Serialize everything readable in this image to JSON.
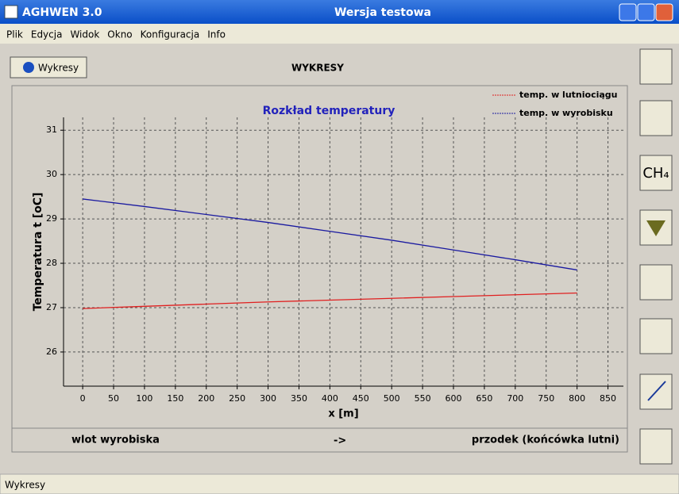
{
  "window": {
    "app_title": "AGHWEN 3.0",
    "center_title": "Wersja testowa"
  },
  "menu": [
    "Plik",
    "Edycja",
    "Widok",
    "Okno",
    "Konfiguracja",
    "Info"
  ],
  "toolbar": {
    "button": "Wykresy",
    "heading": "WYKRESY"
  },
  "side_buttons": [
    "CH₄"
  ],
  "chart_data": {
    "type": "line",
    "title": "Rozkład temperatury",
    "x_label": "x [m]",
    "y_label": "Temperatura  t [oC]",
    "x": [
      0,
      100,
      200,
      300,
      400,
      500,
      600,
      700,
      800
    ],
    "series": [
      {
        "name": "temp. w lutniociągu",
        "color": "#e02020",
        "values": [
          26.98,
          27.03,
          27.08,
          27.13,
          27.17,
          27.21,
          27.25,
          27.29,
          27.33
        ]
      },
      {
        "name": "temp. w wyrobisku",
        "color": "#1a1aa0",
        "values": [
          29.45,
          29.28,
          29.1,
          28.92,
          28.72,
          28.52,
          28.3,
          28.08,
          27.85
        ]
      }
    ],
    "xlim": [
      -31,
      875
    ],
    "ylim": [
      25.23,
      31.29
    ],
    "xticks": [
      0,
      50,
      100,
      150,
      200,
      250,
      300,
      350,
      400,
      450,
      500,
      550,
      600,
      650,
      700,
      750,
      800,
      850
    ],
    "yticks": [
      26,
      27,
      28,
      29,
      30,
      31
    ],
    "grid": true,
    "legend": "top-right"
  },
  "footer": {
    "left": "wlot wyrobiska",
    "center": "->",
    "right": "przodek (końcówka lutni)"
  },
  "status": "Wykresy"
}
